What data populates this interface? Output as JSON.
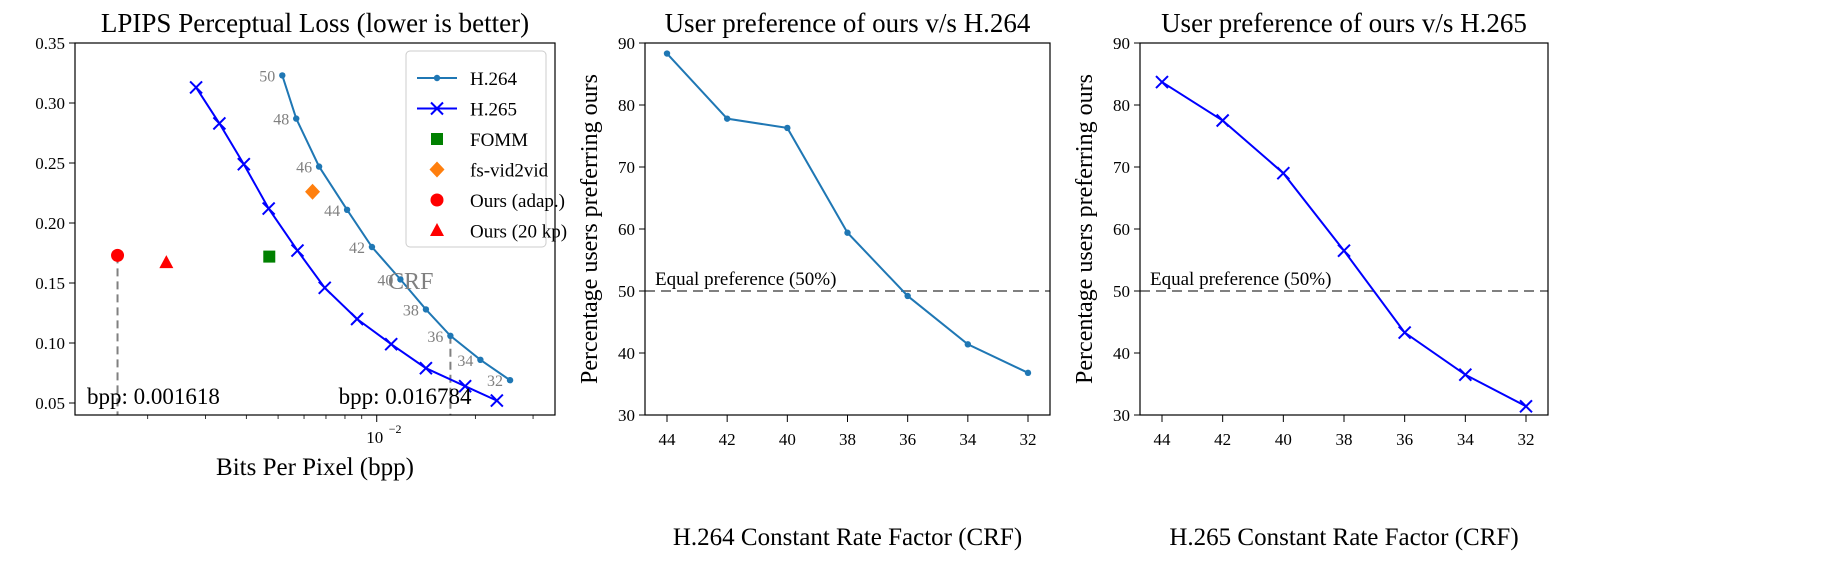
{
  "colors": {
    "h264": "#1f77b4",
    "h265": "#0000ff",
    "fomm": "#008000",
    "fsvid": "#ff7f0e",
    "ours": "#ff0000",
    "refline": "#808080",
    "crf": "#808080"
  },
  "chart_data": [
    {
      "type": "scatter",
      "title": "LPIPS Perceptual Loss (lower is better)",
      "xlabel": "Bits Per Pixel (bpp)",
      "ylabel": "",
      "xscale": "log",
      "xlim": [
        0.0012,
        0.035
      ],
      "ylim": [
        0.04,
        0.35
      ],
      "xtick_label": "10",
      "xtick_sup": "−2",
      "xtick_value": 0.01,
      "yticks": [
        0.05,
        0.1,
        0.15,
        0.2,
        0.25,
        0.3,
        0.35
      ],
      "ytick_labels": [
        "0.05",
        "0.10",
        "0.15",
        "0.20",
        "0.25",
        "0.30",
        "0.35"
      ],
      "legend": "top-right",
      "series": [
        {
          "name": "H.264",
          "kind": "line-dot",
          "x": [
            0.00515,
            0.00568,
            0.00667,
            0.00812,
            0.00967,
            0.01181,
            0.01413,
            0.01678,
            0.02072,
            0.02552
          ],
          "y": [
            0.323,
            0.287,
            0.247,
            0.211,
            0.18,
            0.153,
            0.128,
            0.106,
            0.086,
            0.069
          ],
          "point_labels": [
            "50",
            "48",
            "46",
            "44",
            "42",
            "40",
            "38",
            "36",
            "34",
            "32"
          ]
        },
        {
          "name": "H.265",
          "kind": "line-x",
          "x": [
            0.00281,
            0.00331,
            0.00393,
            0.00468,
            0.00573,
            0.00694,
            0.00871,
            0.01107,
            0.01413,
            0.01861,
            0.02326
          ],
          "y": [
            0.313,
            0.283,
            0.249,
            0.212,
            0.177,
            0.146,
            0.12,
            0.099,
            0.079,
            0.064,
            0.052
          ]
        },
        {
          "name": "FOMM",
          "kind": "square",
          "x": [
            0.0047
          ],
          "y": [
            0.172
          ]
        },
        {
          "name": "fs-vid2vid",
          "kind": "diamond",
          "x": [
            0.00637
          ],
          "y": [
            0.226
          ]
        },
        {
          "name": "Ours (adap.)",
          "kind": "circle",
          "x": [
            0.001618
          ],
          "y": [
            0.173
          ]
        },
        {
          "name": "Ours (20 kp)",
          "kind": "triangle",
          "x": [
            0.00228
          ],
          "y": [
            0.167
          ]
        }
      ],
      "annotations": {
        "crf_label": "CRF",
        "bpp_left": "bpp: 0.001618",
        "bpp_right": "bpp: 0.016784",
        "bpp_left_value": 0.001618,
        "bpp_right_value": 0.016784
      }
    },
    {
      "type": "line",
      "title": "User preference of ours v/s H.264",
      "xlabel": "H.264 Constant Rate Factor (CRF)",
      "ylabel": "Percentage users preferring ours",
      "categories": [
        "44",
        "42",
        "40",
        "38",
        "36",
        "34",
        "32"
      ],
      "series": [
        {
          "name": "H.264",
          "values": [
            88.3,
            77.8,
            76.3,
            59.4,
            49.2,
            41.4,
            36.8
          ]
        }
      ],
      "ylim": [
        30,
        90
      ],
      "yticks": [
        30,
        40,
        50,
        60,
        70,
        80,
        90
      ],
      "reference_line": {
        "value": 50,
        "label": "Equal preference (50%)"
      }
    },
    {
      "type": "line",
      "title": "User preference of ours v/s H.265",
      "xlabel": "H.265 Constant Rate Factor (CRF)",
      "ylabel": "Percentage users preferring ours",
      "categories": [
        "44",
        "42",
        "40",
        "38",
        "36",
        "34",
        "32"
      ],
      "series": [
        {
          "name": "H.265",
          "values": [
            83.7,
            77.5,
            69.0,
            56.5,
            43.3,
            36.5,
            31.4
          ]
        }
      ],
      "ylim": [
        30,
        90
      ],
      "yticks": [
        30,
        40,
        50,
        60,
        70,
        80,
        90
      ],
      "reference_line": {
        "value": 50,
        "label": "Equal preference (50%)"
      }
    }
  ]
}
